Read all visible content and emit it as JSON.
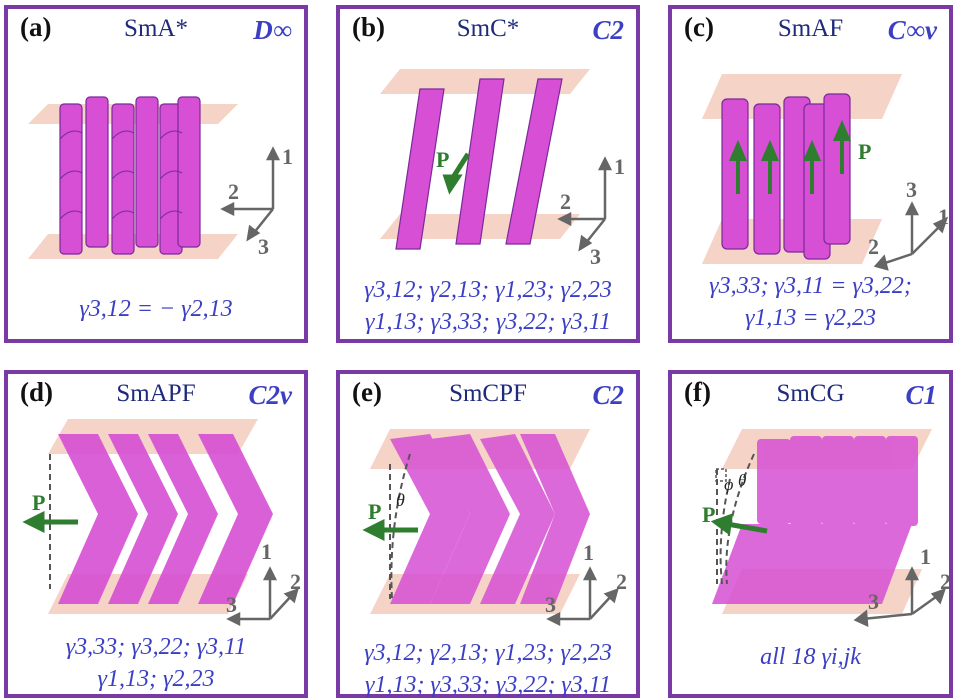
{
  "colors": {
    "border": "#7a3aa6",
    "symmetry": "#3b3fc4",
    "phase": "#1f2a7a",
    "cylinder": "#d64fd4",
    "layer": "#f2c8b8",
    "arrow": "#2f7d2f",
    "axis": "#666666"
  },
  "panels": [
    {
      "label": "(a)",
      "phase": "SmA*",
      "symmetry": "D∞",
      "eq1": "γ3,12 = − γ2,13",
      "eq2": ""
    },
    {
      "label": "(b)",
      "phase": "SmC*",
      "symmetry": "C2",
      "eq1": "γ3,12; γ2,13; γ1,23; γ2,23",
      "eq2": "γ1,13; γ3,33; γ3,22; γ3,11"
    },
    {
      "label": "(c)",
      "phase": "SmAF",
      "symmetry": "C∞v",
      "eq1": "γ3,33; γ3,11 = γ3,22;",
      "eq2": "γ1,13 = γ2,23"
    },
    {
      "label": "(d)",
      "phase": "SmAPF",
      "symmetry": "C2v",
      "eq1": "γ3,33; γ3,22; γ3,11",
      "eq2": "γ1,13; γ2,23"
    },
    {
      "label": "(e)",
      "phase": "SmCPF",
      "symmetry": "C2",
      "eq1": "γ3,12; γ2,13; γ1,23; γ2,23",
      "eq2": "γ1,13; γ3,33; γ3,22; γ3,11"
    },
    {
      "label": "(f)",
      "phase": "SmCG",
      "symmetry": "C1",
      "eq1": "all 18 γi,jk",
      "eq2": ""
    }
  ],
  "axes": {
    "a1": "1",
    "a2": "2",
    "a3": "3"
  },
  "polarization": "P",
  "angles": {
    "theta": "θ",
    "phi": "φ"
  }
}
